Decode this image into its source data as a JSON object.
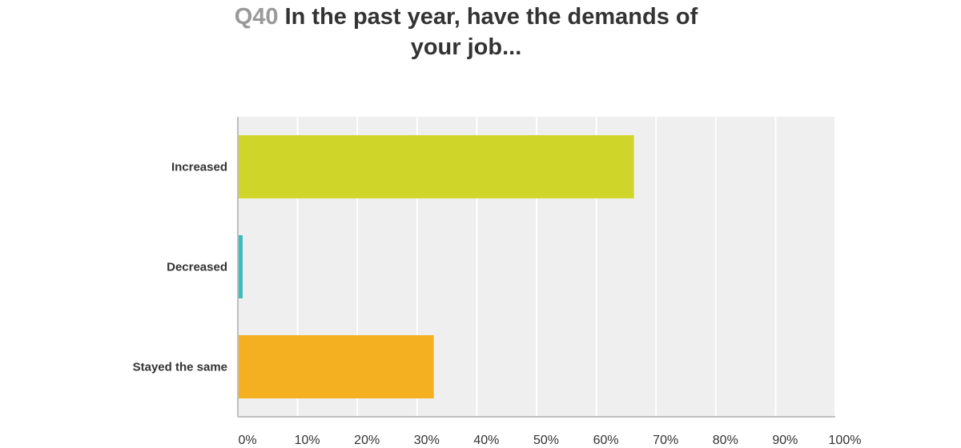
{
  "question": {
    "number": "Q40",
    "line1": "In the past year, have the demands of",
    "line2": "your job..."
  },
  "chart_data": {
    "type": "bar",
    "orientation": "horizontal",
    "categories": [
      "Increased",
      "Decreased",
      "Stayed the same"
    ],
    "values": [
      66.3,
      0.8,
      32.8
    ],
    "colors": [
      "#cfd629",
      "#3cbcbc",
      "#f5b021"
    ],
    "xlim": [
      0,
      100
    ],
    "x_ticks": [
      "0%",
      "10%",
      "20%",
      "30%",
      "40%",
      "50%",
      "60%",
      "70%",
      "80%",
      "90%",
      "100%"
    ],
    "grid": true,
    "background": "#efefef",
    "xlabel": "",
    "ylabel": ""
  }
}
